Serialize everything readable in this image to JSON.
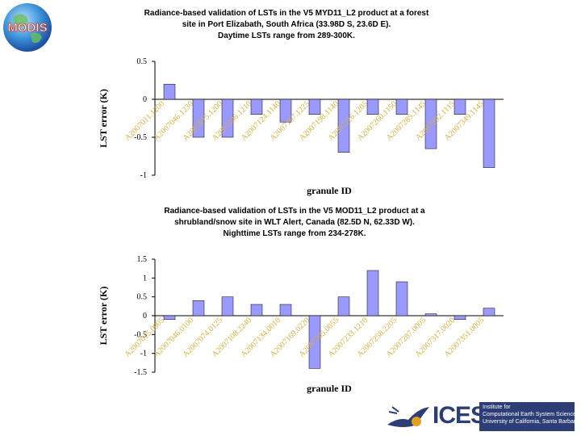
{
  "logos": {
    "modis": "MODIS",
    "icess": "ICESS",
    "institute_lines": [
      "Institute for",
      "Computational Earth System Science",
      "University of California, Santa Barbara"
    ]
  },
  "colors": {
    "bar_fill": "#9999ff",
    "bar_stroke": "#000000",
    "tick_label": "#d9b13a"
  },
  "chart_data": [
    {
      "type": "bar",
      "title": "Radiance-based validation of LSTs in the V5 MYD11_L2 product at a forest site in Port Elizabath, South Africa (33.98D S, 23.6D E). Daytime LSTs range from 289-300K.",
      "title_lines": [
        "Radiance-based validation of LSTs in the V5 MYD11_L2  product at a forest",
        "site in Port Elizabath, South Africa (33.98D S, 23.6D E).",
        "Daytime LSTs range from 289-300K."
      ],
      "xlabel": "granule ID",
      "ylabel": "LST error (K)",
      "ylim": [
        -1,
        0.5
      ],
      "yticks": [
        0.5,
        0,
        -0.5,
        -1
      ],
      "ytick_labels": [
        "0.5",
        "0",
        "-0.5",
        "-1"
      ],
      "categories": [
        "A2007011.1200",
        "A2007046.1230",
        "A2007075.1200",
        "A2007106.1210",
        "A2007124.1140",
        "A2007167.1225",
        "A2007198.1140",
        "A2007226.1205",
        "A2007260.1150",
        "A2007285.1145",
        "A2007292.1115",
        "A2007349.1145"
      ],
      "values": [
        0.2,
        -0.5,
        -0.5,
        -0.2,
        -0.3,
        -0.2,
        -0.7,
        -0.2,
        -0.2,
        -0.65,
        -0.2,
        -0.9
      ]
    },
    {
      "type": "bar",
      "title": "Radiance-based validation of LSTs in the V5 MOD11_L2 product at a shrubland/snow site in WLT Alert, Canada (82.5D N, 62.33D W). Nighttime LSTs range from 234-278K.",
      "title_lines": [
        "Radiance-based validation of LSTs in the V5 MOD11_L2  product at a",
        "shrubland/snow site in WLT Alert, Canada (82.5D N, 62.33D W).",
        "Nighttime LSTs range from 234-278K."
      ],
      "xlabel": "granule ID",
      "ylabel": "LST error (K)",
      "ylim": [
        -1.5,
        1.5
      ],
      "yticks": [
        1.5,
        1,
        0.5,
        0,
        -0.5,
        -1,
        -1.5
      ],
      "ytick_labels": [
        "1.5",
        "1",
        "0.5",
        "0",
        "-0.5",
        "-1",
        "-1.5"
      ],
      "categories": [
        "A2007015.0005",
        "A2007046.0100",
        "A2007074.0125",
        "A2007108.2240",
        "A2007134.0010",
        "A2007169.0220",
        "A2007205.0055",
        "A2007233.1210",
        "A2007258.2205",
        "A2007287.0005",
        "A2007317.0020",
        "A2007351.0005"
      ],
      "values": [
        -0.1,
        0.4,
        0.5,
        0.3,
        0.3,
        -1.4,
        0.5,
        1.2,
        0.9,
        0.05,
        -0.1,
        0.2
      ]
    }
  ]
}
